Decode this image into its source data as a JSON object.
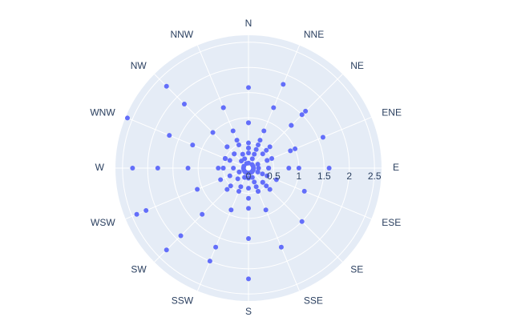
{
  "chart_data": {
    "type": "scatter_polar",
    "angular_categories": [
      "N",
      "NNE",
      "NE",
      "ENE",
      "E",
      "ESE",
      "SE",
      "SSE",
      "S",
      "SSW",
      "SW",
      "WSW",
      "W",
      "WNW",
      "NW",
      "NNW"
    ],
    "theta": [
      "N",
      "NNE",
      "NE",
      "ENE",
      "E",
      "ESE",
      "SE",
      "SSE",
      "S",
      "SSW",
      "SW",
      "WSW",
      "W",
      "WNW",
      "NW",
      "NNW",
      "N",
      "NNE",
      "NE",
      "ENE",
      "E",
      "ESE",
      "SE",
      "SSE",
      "S",
      "SSW",
      "SW",
      "WSW",
      "W",
      "WNW",
      "NW",
      "NNW",
      "N",
      "NNE",
      "NE",
      "ENE",
      "E",
      "ESE",
      "SE",
      "SSE",
      "S",
      "SSW",
      "SW",
      "WSW",
      "W",
      "WNW",
      "NW",
      "NNW",
      "N",
      "NNE",
      "NE",
      "ENE",
      "E",
      "ESE",
      "SE",
      "SSE",
      "S",
      "SSW",
      "SW",
      "WSW",
      "W",
      "WNW",
      "NW",
      "NNW",
      "N",
      "NNE",
      "NE",
      "ENE",
      "E",
      "ESE",
      "SE",
      "SSE",
      "S",
      "SSW",
      "SW",
      "WSW",
      "W",
      "WNW",
      "NW",
      "NNW",
      "N",
      "NNE",
      "NE",
      "ENE",
      "E",
      "ESE",
      "SE",
      "SSE",
      "S",
      "SSW",
      "SW",
      "WSW",
      "W",
      "WNW",
      "NW",
      "NNW",
      "N",
      "NNE",
      "NE",
      "ENE",
      "E",
      "ESE",
      "SE",
      "SSE",
      "S",
      "SSW",
      "SW",
      "WSW",
      "W",
      "WNW",
      "NW",
      "NNW",
      "N",
      "NNE",
      "NE",
      "ENE",
      "E",
      "ESE",
      "SE",
      "SSE",
      "S",
      "SSW",
      "SW",
      "WSW",
      "W",
      "WNW",
      "NW",
      "NNW"
    ],
    "r": [
      0.5,
      0.6,
      0.5,
      0.4,
      0.4,
      0.3,
      0.4,
      0.4,
      0.6,
      0.4,
      0.5,
      0.6,
      0.6,
      0.5,
      0.4,
      0.1,
      1.6,
      1.8,
      1.5,
      1.6,
      1.6,
      1.2,
      1.5,
      1.7,
      2.2,
      2.0,
      2.3,
      2.4,
      2.3,
      2.6,
      2.3,
      0.8,
      0.9,
      1.3,
      1.6,
      0.9,
      1.0,
      0.6,
      0.6,
      0.9,
      1.4,
      1.7,
      1.9,
      2.2,
      1.8,
      1.7,
      1.8,
      1.3,
      0.9,
      0.8,
      1.2,
      1.0,
      0.8,
      0.4,
      0.5,
      0.5,
      0.8,
      0.9,
      1.3,
      1.1,
      1.2,
      1.2,
      1.0,
      1.3,
      0.4,
      0.5,
      1.2,
      0.5,
      0.4,
      0.2,
      0.4,
      0.5,
      0.4,
      0.5,
      0.6,
      0.4,
      0.5,
      0.5,
      0.6,
      0.6,
      0.3,
      0.4,
      0.6,
      0.2,
      0.2,
      0.1,
      0.1,
      0.1,
      0.1,
      0.1,
      0.1,
      0.1,
      0.1,
      0.1,
      0.2,
      0.2,
      0.4,
      0.3,
      0.4,
      0.4,
      0.4,
      0.2,
      0.1,
      0.3,
      0.2,
      0.2,
      0.3,
      0.2,
      0.5,
      0.4,
      0.6,
      0.5,
      0.1,
      0.2,
      0.1,
      0.1,
      0.1,
      0.1,
      0.1,
      0.2,
      0.1,
      0.2,
      0.1,
      0.2,
      0.3,
      0.5,
      0.4,
      0.3
    ],
    "color": "#636efa",
    "rlim": [
      0,
      2.64
    ],
    "rticks": [
      0,
      0.5,
      1,
      1.5,
      2,
      2.5
    ],
    "grid": true
  }
}
